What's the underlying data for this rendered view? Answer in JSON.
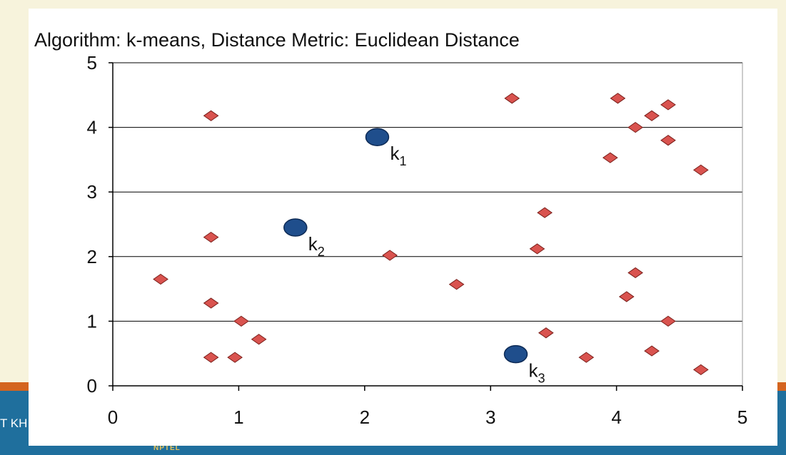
{
  "footer": {
    "left_text": "T KH",
    "logo_text": "NPTEL"
  },
  "chart_data": {
    "type": "scatter",
    "title": "Algorithm: k-means, Distance Metric: Euclidean Distance",
    "xlabel": "",
    "ylabel": "",
    "xlim": [
      0,
      5
    ],
    "ylim": [
      0,
      5
    ],
    "xticks": [
      "0",
      "1",
      "2",
      "3",
      "4",
      "5"
    ],
    "yticks": [
      "0",
      "1",
      "2",
      "3",
      "4",
      "5"
    ],
    "grid": "horizontal",
    "legend": "none",
    "colors": {
      "points": "#d9534f",
      "point_stroke": "#7a1f1a",
      "centroids": "#1f4e8c",
      "centroid_stroke": "#0d2a55",
      "gridline": "#000000"
    },
    "series": [
      {
        "marker": "diamond",
        "points": [
          [
            0.78,
            4.18
          ],
          [
            0.78,
            2.3
          ],
          [
            0.38,
            1.65
          ],
          [
            0.78,
            1.28
          ],
          [
            1.02,
            1.0
          ],
          [
            1.16,
            0.72
          ],
          [
            0.78,
            0.44
          ],
          [
            0.97,
            0.44
          ],
          [
            2.2,
            2.02
          ],
          [
            2.73,
            1.57
          ],
          [
            3.17,
            4.45
          ],
          [
            3.43,
            2.68
          ],
          [
            3.37,
            2.12
          ],
          [
            3.44,
            0.82
          ],
          [
            3.76,
            0.44
          ],
          [
            4.01,
            4.45
          ],
          [
            4.28,
            4.18
          ],
          [
            4.41,
            4.35
          ],
          [
            4.15,
            4.0
          ],
          [
            4.41,
            3.8
          ],
          [
            3.95,
            3.53
          ],
          [
            4.67,
            3.34
          ],
          [
            4.15,
            1.75
          ],
          [
            4.08,
            1.38
          ],
          [
            4.41,
            1.0
          ],
          [
            4.28,
            0.54
          ],
          [
            4.67,
            0.25
          ]
        ]
      },
      {
        "marker": "circle",
        "points": [
          {
            "x": 2.1,
            "y": 3.85,
            "label": "k",
            "sub": "1"
          },
          {
            "x": 1.45,
            "y": 2.45,
            "label": "k",
            "sub": "2"
          },
          {
            "x": 3.2,
            "y": 0.49,
            "label": "k",
            "sub": "3"
          }
        ]
      }
    ]
  }
}
